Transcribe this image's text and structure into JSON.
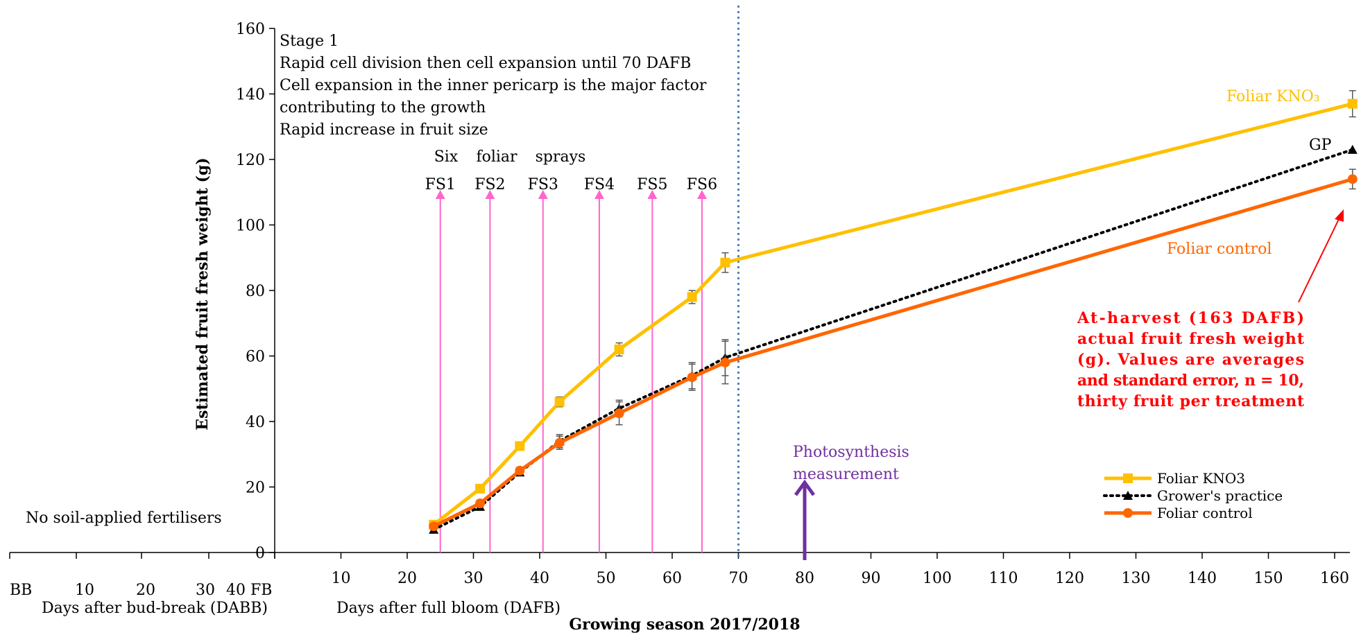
{
  "chart_data": {
    "type": "line",
    "ylabel": "Estimated fruit fresh weight (g)",
    "ylim": [
      0,
      160
    ],
    "yticks": [
      0,
      20,
      40,
      60,
      80,
      100,
      120,
      140,
      160
    ],
    "xlim": [
      0,
      162
    ],
    "xticks": [
      10,
      20,
      30,
      40,
      50,
      60,
      70,
      80,
      90,
      100,
      110,
      120,
      130,
      140,
      150,
      160
    ],
    "xlabel_dafb": "Days after full bloom (DAFB)",
    "xlabel_season": "Growing season 2017/2018",
    "dabb_axis": {
      "ticks": [
        "BB",
        "10",
        "20",
        "30",
        "40 FB"
      ],
      "label": "Days after bud-break (DABB)"
    },
    "series": [
      {
        "name": "Foliar KNO3",
        "color": "#FFC000",
        "marker": "square",
        "x": [
          24,
          31,
          37,
          43,
          52,
          63,
          68,
          163
        ],
        "y": [
          8.5,
          19.5,
          32.5,
          46,
          62,
          78,
          88.5,
          137
        ],
        "err": [
          1,
          1,
          1,
          1.5,
          2,
          2,
          3,
          4
        ]
      },
      {
        "name": "Grower's practice",
        "color": "#000000",
        "marker": "triangle",
        "x": [
          24,
          31,
          37,
          43,
          52,
          63,
          68,
          163
        ],
        "y": [
          7,
          14,
          24.5,
          34,
          44,
          54,
          59.5,
          123
        ],
        "err": [
          0,
          1,
          1,
          2,
          2.5,
          4,
          5.5,
          0
        ]
      },
      {
        "name": "Foliar control",
        "color": "#FF6600",
        "marker": "circle",
        "x": [
          24,
          31,
          37,
          43,
          52,
          63,
          68,
          163
        ],
        "y": [
          8,
          15,
          25,
          33.5,
          42.5,
          53.5,
          58,
          114
        ],
        "err": [
          0.5,
          1,
          1,
          2,
          3.5,
          4,
          6.5,
          3
        ]
      }
    ],
    "sprays": {
      "x": [
        25,
        32.5,
        40.5,
        49,
        57,
        64.5
      ],
      "labels": [
        "FS1",
        "FS2",
        "FS3",
        "FS4",
        "FS5",
        "FS6"
      ],
      "heading": [
        "Six",
        "foliar",
        "sprays"
      ],
      "color": "#FF66CC"
    },
    "stage_line_x": 70,
    "stage_text": [
      "Stage 1",
      "Rapid cell division then cell expansion until 70 DAFB",
      "Cell expansion in the inner pericarp is the major factor",
      "contributing to the growth",
      "Rapid increase in fruit size"
    ],
    "photosynthesis": {
      "x": 80,
      "label_lines": [
        "Photosynthesis",
        "measurement"
      ],
      "color": "#7030A0"
    },
    "annotations": {
      "foliar_kno3_label": "Foliar KNO₃",
      "gp_label": "GP",
      "foliar_control_label": "Foliar control",
      "no_soil": "No soil-applied fertilisers",
      "harvest_note": [
        "At-harvest (163 DAFB)",
        "actual fruit fresh weight",
        "(g). Values are averages",
        "and standard error, n = 10,",
        "thirty fruit per treatment"
      ],
      "harvest_color": "#FF0000"
    },
    "legend": {
      "position": "bottom-right",
      "entries": [
        "Foliar KNO3",
        "Grower's practice",
        "Foliar control"
      ]
    }
  }
}
